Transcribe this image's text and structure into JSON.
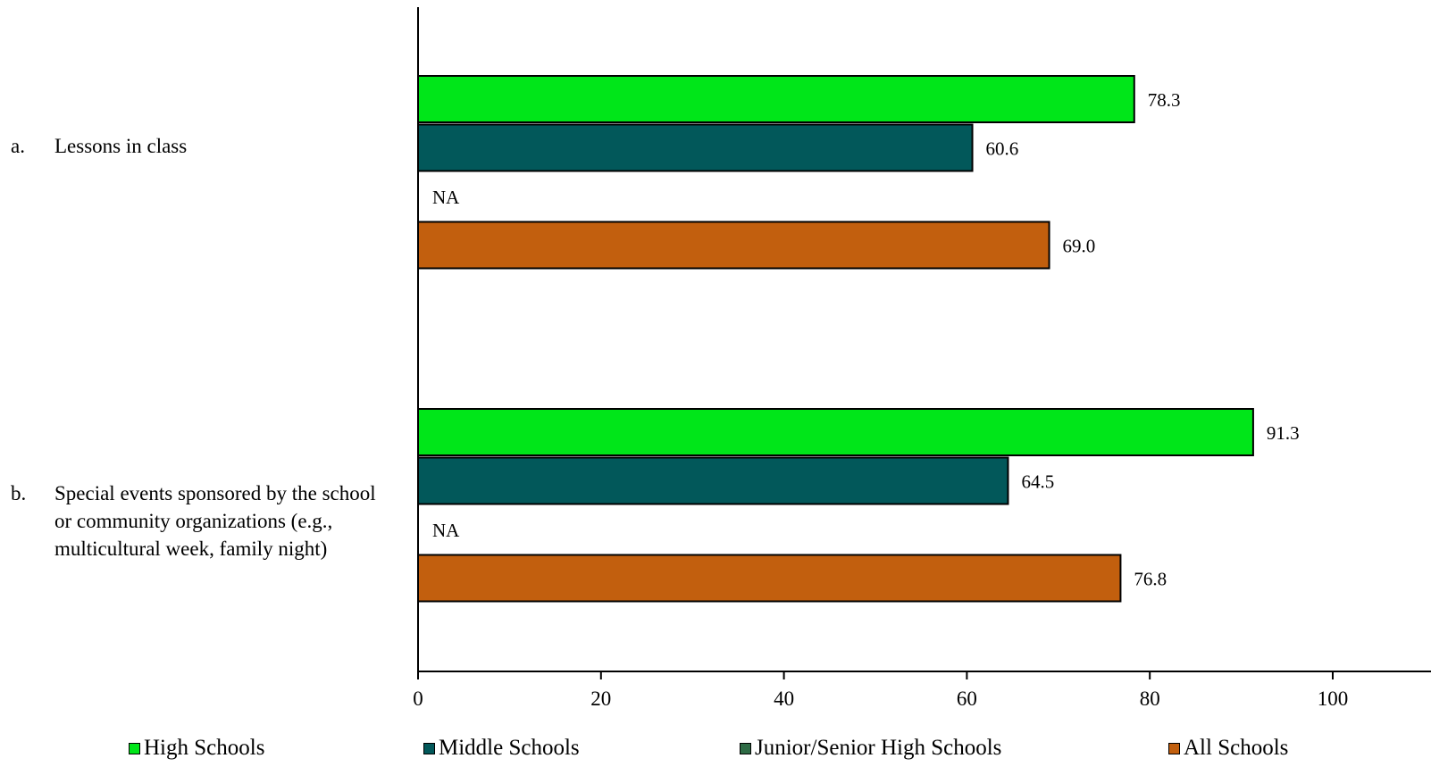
{
  "chart_data": {
    "type": "bar",
    "orientation": "horizontal",
    "categories": [
      {
        "prefix": "a.",
        "label": "Lessons in class"
      },
      {
        "prefix": "b.",
        "label": "Special events sponsored by the school or community organizations (e.g., multicultural week, family night)"
      }
    ],
    "series": [
      {
        "name": "High Schools",
        "color": "#00E619",
        "values": [
          78.3,
          91.3
        ],
        "labels": [
          "78.3",
          "91.3"
        ]
      },
      {
        "name": "Middle Schools",
        "color": "#02585A",
        "values": [
          60.6,
          64.5
        ],
        "labels": [
          "60.6",
          "64.5"
        ]
      },
      {
        "name": "Junior/Senior High Schools",
        "color": "#2E6B45",
        "values": [
          null,
          null
        ],
        "labels": [
          "NA",
          "NA"
        ]
      },
      {
        "name": "All Schools",
        "color": "#C25F0E",
        "values": [
          69.0,
          76.8
        ],
        "labels": [
          "69.0",
          "76.8"
        ]
      }
    ],
    "xlim": [
      0,
      100
    ],
    "xticks": [
      "0",
      "20",
      "40",
      "60",
      "80",
      "100"
    ],
    "legend_position": "bottom",
    "grid": false
  }
}
